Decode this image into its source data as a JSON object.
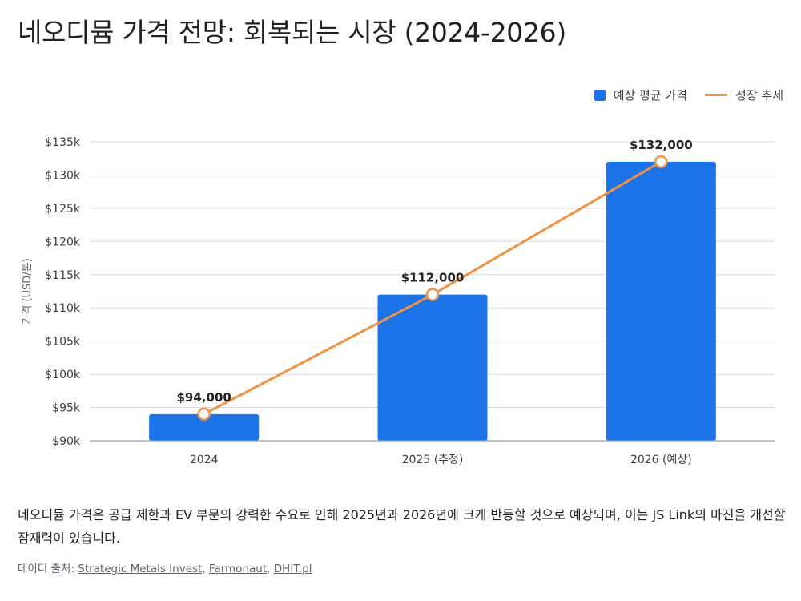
{
  "page": {
    "title": "네오디뮴 가격 전망: 회복되는 시장 (2024-2026)",
    "note": "네오디뮴 가격은 공급 제한과 EV 부문의 강력한 수요로 인해 2025년과 2026년에 크게 반등할 것으로 예상되며, 이는 JS Link의 마진을 개선할 잠재력이 있습니다.",
    "source_label": "데이터 출처:",
    "sources": [
      "Strategic Metals Invest",
      "Farmonaut",
      "DHIT.pl"
    ]
  },
  "colors": {
    "bar": "#1a73e8",
    "line": "#f2923e",
    "grid": "#dadce0",
    "axis": "#9aa0a6",
    "text": "#3c4043"
  },
  "chart_data": {
    "type": "bar",
    "categories": [
      "2024",
      "2025 (추정)",
      "2026 (예상)"
    ],
    "series": [
      {
        "name": "예상 평균 가격",
        "type": "bar",
        "values": [
          94000,
          112000,
          132000
        ]
      },
      {
        "name": "성장 추세",
        "type": "line",
        "values": [
          94000,
          112000,
          132000
        ]
      }
    ],
    "data_labels": [
      "$94,000",
      "$112,000",
      "$132,000"
    ],
    "ylabel": "가격 (USD/톤)",
    "ylim": [
      90000,
      135000
    ],
    "yticks": [
      90000,
      95000,
      100000,
      105000,
      110000,
      115000,
      120000,
      125000,
      130000,
      135000
    ],
    "ytick_labels": [
      "$90k",
      "$95k",
      "$100k",
      "$105k",
      "$110k",
      "$115k",
      "$120k",
      "$125k",
      "$130k",
      "$135k"
    ],
    "grid": true,
    "legend_position": "top-right"
  }
}
